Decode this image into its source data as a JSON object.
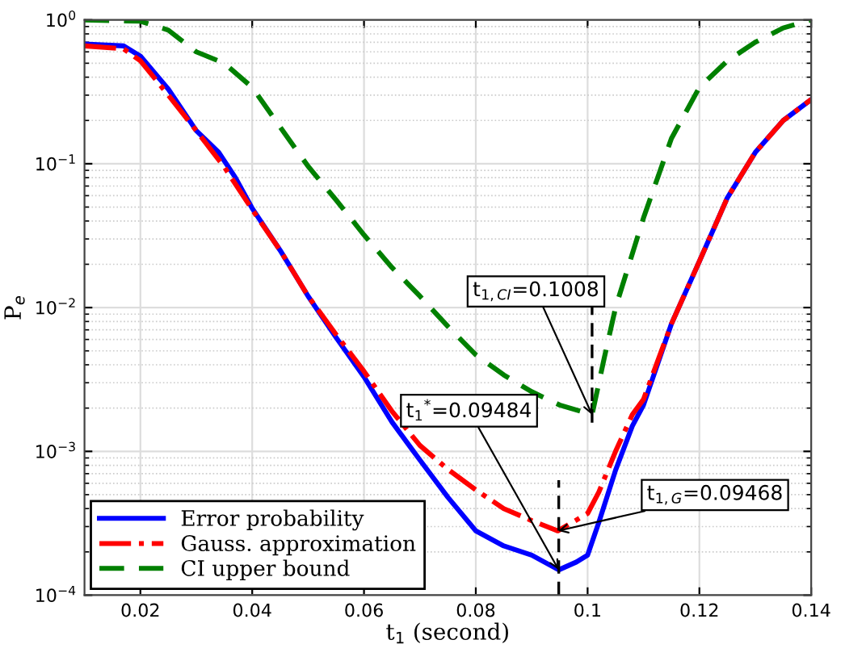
{
  "chart_data": {
    "type": "line",
    "xlabel": "t$_{1}$ (second)",
    "ylabel": "P$_{e}$",
    "log": "y",
    "grid": true,
    "legend": "bottom left",
    "xlim": [
      0.01,
      0.14
    ],
    "xticks": [
      0.02,
      0.04,
      0.06,
      0.08,
      0.1,
      0.12,
      0.14
    ],
    "ylim": [
      0.0001,
      1
    ],
    "yticks": [
      {
        "value": 0.0001,
        "label": "10$^{−4}$"
      },
      {
        "value": 0.001,
        "label": "10$^{−3}$"
      },
      {
        "value": 0.01,
        "label": "10$^{−2}$"
      },
      {
        "value": 0.1,
        "label": "10$^{−1}$"
      },
      {
        "value": 1,
        "label": "10$^{0}$"
      }
    ],
    "series": [
      {
        "name": "Error probability",
        "color": "#0000ff",
        "line_style": "solid",
        "x": [
          0.01,
          0.017,
          0.02,
          0.025,
          0.03,
          0.034,
          0.037,
          0.04,
          0.045,
          0.05,
          0.055,
          0.06,
          0.065,
          0.07,
          0.075,
          0.08,
          0.085,
          0.09,
          0.09484,
          0.098,
          0.1,
          0.102,
          0.105,
          0.108,
          0.11,
          0.115,
          0.12,
          0.125,
          0.13,
          0.135,
          0.14
        ],
        "values": [
          0.68,
          0.66,
          0.56,
          0.33,
          0.17,
          0.12,
          0.08,
          0.049,
          0.025,
          0.012,
          0.0062,
          0.0033,
          0.0016,
          0.00087,
          0.00048,
          0.00028,
          0.00022,
          0.00019,
          0.00015,
          0.00017,
          0.00019,
          0.00032,
          0.00074,
          0.0015,
          0.0021,
          0.0077,
          0.021,
          0.058,
          0.12,
          0.2,
          0.28
        ]
      },
      {
        "name": "Gauss. approximation",
        "color": "#ff0000",
        "line_style": "dashdot",
        "x": [
          0.01,
          0.017,
          0.02,
          0.025,
          0.03,
          0.035,
          0.04,
          0.045,
          0.05,
          0.055,
          0.06,
          0.065,
          0.07,
          0.075,
          0.08,
          0.085,
          0.09,
          0.09468,
          0.1,
          0.102,
          0.105,
          0.108,
          0.11,
          0.115,
          0.12,
          0.125,
          0.13,
          0.135,
          0.14
        ],
        "values": [
          0.66,
          0.63,
          0.52,
          0.3,
          0.17,
          0.095,
          0.048,
          0.025,
          0.012,
          0.0065,
          0.0036,
          0.0019,
          0.0011,
          0.00075,
          0.00054,
          0.0004,
          0.00033,
          0.00028,
          0.00037,
          0.00052,
          0.001,
          0.0018,
          0.0023,
          0.0077,
          0.021,
          0.058,
          0.12,
          0.2,
          0.28
        ]
      },
      {
        "name": "CI upper bound",
        "color": "#008000",
        "line_style": "dashed",
        "x": [
          0.01,
          0.02,
          0.025,
          0.03,
          0.035,
          0.04,
          0.045,
          0.05,
          0.055,
          0.06,
          0.065,
          0.07,
          0.075,
          0.08,
          0.085,
          0.09,
          0.095,
          0.1008,
          0.103,
          0.105,
          0.11,
          0.115,
          0.12,
          0.125,
          0.13,
          0.135,
          0.14
        ],
        "values": [
          1.0,
          0.98,
          0.85,
          0.6,
          0.5,
          0.34,
          0.18,
          0.096,
          0.056,
          0.032,
          0.019,
          0.012,
          0.0074,
          0.0047,
          0.0034,
          0.0026,
          0.0021,
          0.0018,
          0.0045,
          0.01,
          0.042,
          0.15,
          0.34,
          0.52,
          0.7,
          0.88,
          1.0
        ]
      }
    ],
    "ref_lines": [
      {
        "axis": "x",
        "value": 0.09484,
        "color": "#000000",
        "line_style": "dashed"
      },
      {
        "axis": "x",
        "value": 0.1008,
        "color": "#000000",
        "line_style": "dashed"
      }
    ],
    "annotations": [
      {
        "text": "t$_{1}$$^{*}$=0.09484",
        "x": 0.09484,
        "y": 0.00015
      },
      {
        "text": "t$_{1,CI}$=0.1008",
        "x": 0.1008,
        "y": 0.0018
      },
      {
        "text": "t$_{1,G}$=0.09468",
        "x": 0.09468,
        "y": 0.00028
      }
    ]
  }
}
